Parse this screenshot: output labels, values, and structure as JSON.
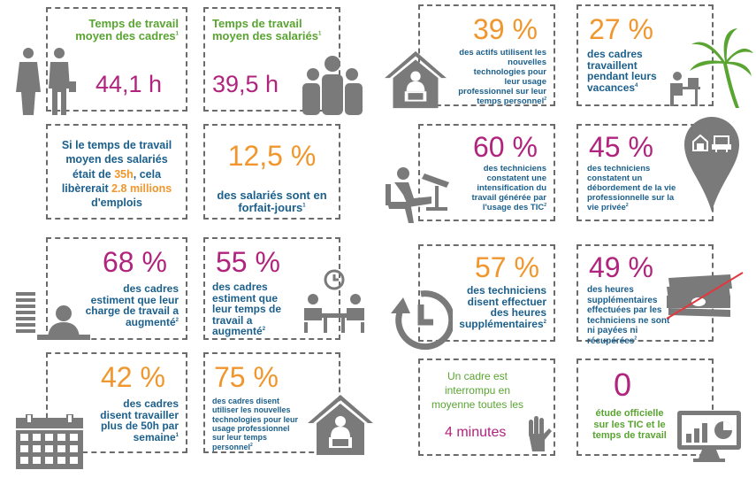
{
  "colors": {
    "green": "#5aa432",
    "blue": "#1b5f8c",
    "orange": "#f0962c",
    "pink": "#b0247e",
    "grey": "#7a7a7a"
  },
  "cards": {
    "c1": {
      "label": "Temps de travail moyen des cadres",
      "sup": "1",
      "value": "44,1 h",
      "icon": "two-people-icon"
    },
    "c2": {
      "label": "Temps de travail moyen des salariés",
      "sup": "1",
      "value": "39,5 h",
      "icon": "group-people-icon"
    },
    "c3": {
      "l1": "Si le temps de travail",
      "l2": "moyen des salariés",
      "l3a": "était de ",
      "l3b": "35h",
      "l3c": ", cela",
      "l4a": "libèrerait ",
      "l4b": "2.8 millions",
      "l5": "d'emplois"
    },
    "c4": {
      "value": "12,5 %",
      "label": "des salariés sont en forfait-jours",
      "sup": "1"
    },
    "c5": {
      "value": "68 %",
      "label": "des cadres estiment que leur charge de travail a augmenté",
      "sup": "2",
      "icon": "person-desk-papers-icon"
    },
    "c6": {
      "value": "55 %",
      "label": "des cadres estiment que leur temps de travail a augmenté",
      "sup": "2",
      "icon": "meeting-clock-icon"
    },
    "c7": {
      "value": "42 %",
      "label": "des cadres disent travailler plus de 50h par semaine",
      "sup": "1",
      "icon": "calendar-icon"
    },
    "c8": {
      "value": "75 %",
      "label": "des cadres disent utiliser les nouvelles technologies pour leur usage professionnel sur leur temps personnel",
      "sup": "2",
      "icon": "house-laptop-icon"
    },
    "c9": {
      "value": "39 %",
      "label": "des actifs utilisent les nouvelles technologies pour leur usage professionnel sur leur temps personnel",
      "sup": "2",
      "icon": "house-laptop-icon"
    },
    "c10": {
      "value": "27 %",
      "label": "des cadres travaillent pendant leurs vacances",
      "sup": "4",
      "icon": "palm-laptop-icon"
    },
    "c11": {
      "value": "60 %",
      "label": "des techniciens constatent une intensification du travail générée par l'usage des TIC",
      "sup": "2",
      "icon": "person-laptop-icon"
    },
    "c12": {
      "value": "45 %",
      "label": "des techniciens constatent un débordement de la vie professionnelle sur la vie privée",
      "sup": "2",
      "icon": "location-pin-icon"
    },
    "c13": {
      "value": "57 %",
      "label": "des techniciens disent effectuer des heures supplémentaires",
      "sup": "2",
      "icon": "clock-arrow-icon"
    },
    "c14": {
      "value": "49 %",
      "label": "des heures supplémentaires effectuées par les techniciens ne sont ni payées ni récupérées",
      "sup": "2",
      "icon": "crossed-money-icon"
    },
    "c15": {
      "l1": "Un cadre est",
      "l2": "interrompu en",
      "l3": "moyenne toutes les",
      "value": "4 minutes",
      "icon": "hand-icon"
    },
    "c16": {
      "value": "0",
      "label": "étude officielle sur les TIC et le temps de travail",
      "icon": "monitor-chart-icon"
    }
  }
}
